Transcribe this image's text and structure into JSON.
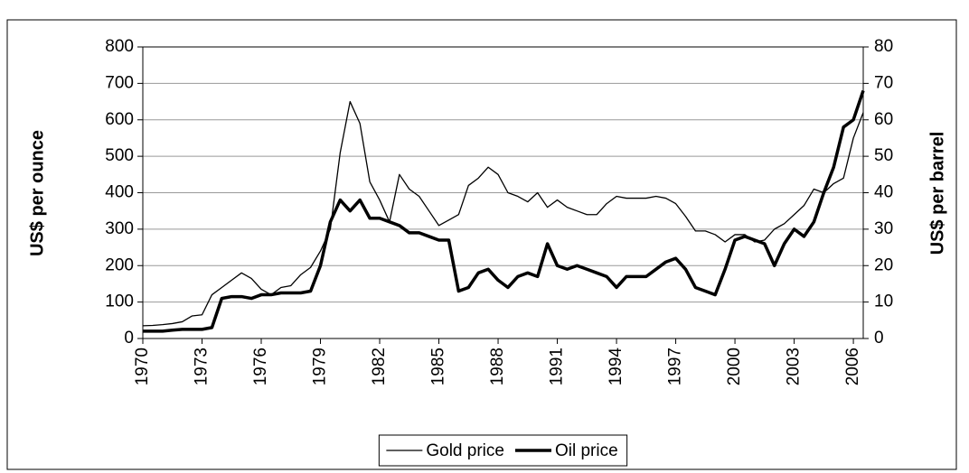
{
  "chart_data": {
    "type": "line",
    "x": [
      1970,
      1970.5,
      1971,
      1971.5,
      1972,
      1972.5,
      1973,
      1973.5,
      1974,
      1974.5,
      1975,
      1975.5,
      1976,
      1976.5,
      1977,
      1977.5,
      1978,
      1978.5,
      1979,
      1979.5,
      1980,
      1980.5,
      1981,
      1981.5,
      1982,
      1982.5,
      1983,
      1983.5,
      1984,
      1984.5,
      1985,
      1985.5,
      1986,
      1986.5,
      1987,
      1987.5,
      1988,
      1988.5,
      1989,
      1989.5,
      1990,
      1990.5,
      1991,
      1991.5,
      1992,
      1992.5,
      1993,
      1993.5,
      1994,
      1994.5,
      1995,
      1995.5,
      1996,
      1996.5,
      1997,
      1997.5,
      1998,
      1998.5,
      1999,
      1999.5,
      2000,
      2000.5,
      2001,
      2001.5,
      2002,
      2002.5,
      2003,
      2003.5,
      2004,
      2004.5,
      2005,
      2005.5,
      2006,
      2006.5
    ],
    "series": [
      {
        "name": "Gold price",
        "color": "#000000",
        "width": 1.3,
        "values": [
          35,
          36,
          38,
          41,
          46,
          62,
          65,
          120,
          140,
          160,
          180,
          165,
          135,
          120,
          140,
          145,
          175,
          195,
          240,
          300,
          510,
          650,
          590,
          430,
          380,
          320,
          450,
          410,
          390,
          350,
          310,
          325,
          340,
          420,
          440,
          470,
          450,
          400,
          390,
          375,
          400,
          360,
          380,
          360,
          350,
          340,
          340,
          370,
          390,
          385,
          385,
          385,
          390,
          385,
          370,
          335,
          295,
          295,
          285,
          265,
          285,
          285,
          265,
          270,
          300,
          315,
          340,
          365,
          410,
          400,
          425,
          440,
          550,
          620
        ]
      },
      {
        "name": "Oil price",
        "color": "#000000",
        "width": 3.5,
        "axis": "y2",
        "values": [
          2,
          2,
          2,
          2.3,
          2.5,
          2.5,
          2.5,
          3,
          11,
          11.5,
          11.5,
          11,
          12,
          12,
          12.5,
          12.5,
          12.5,
          13,
          20,
          32,
          38,
          35,
          38,
          33,
          33,
          32,
          31,
          29,
          29,
          28,
          27,
          27,
          13,
          14,
          18,
          19,
          16,
          14,
          17,
          18,
          17,
          26,
          20,
          19,
          20,
          19,
          18,
          17,
          14,
          17,
          17,
          17,
          19,
          21,
          22,
          19,
          14,
          13,
          12,
          19,
          27,
          28,
          27,
          26,
          20,
          26,
          30,
          28,
          32,
          40,
          47,
          58,
          60,
          68
        ]
      }
    ],
    "xlim": [
      1970,
      2006.5
    ],
    "xticks": [
      1970,
      1973,
      1976,
      1979,
      1982,
      1985,
      1988,
      1991,
      1994,
      1997,
      2000,
      2003,
      2006
    ],
    "ylim": [
      0,
      800
    ],
    "yticks": [
      0,
      100,
      200,
      300,
      400,
      500,
      600,
      700,
      800
    ],
    "y2lim": [
      0,
      80
    ],
    "y2ticks": [
      0,
      10,
      20,
      30,
      40,
      50,
      60,
      70,
      80
    ],
    "ylabel": "US$ per ounce",
    "y2label": "US$ per barrel",
    "grid": true,
    "legend": "bottom"
  }
}
